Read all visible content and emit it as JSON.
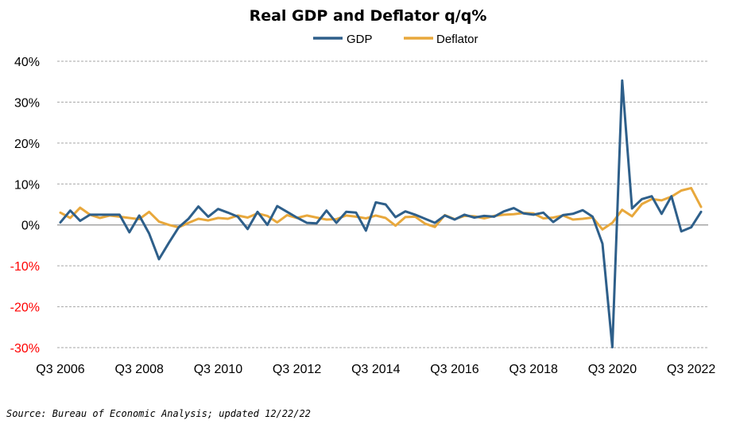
{
  "chart_data": {
    "type": "line",
    "title": "Real GDP and Deflator q/q%",
    "xlabel": "",
    "ylabel": "",
    "ylim": [
      -30,
      40
    ],
    "yticks": [
      40,
      30,
      20,
      10,
      0,
      -10,
      -20,
      -30
    ],
    "ytick_labels": [
      "40%",
      "30%",
      "20%",
      "10%",
      "0%",
      "-10%",
      "-20%",
      "-30%"
    ],
    "negative_tick_color": "#ff0000",
    "xtick_labels": [
      "Q3 2006",
      "Q3 2008",
      "Q3 2010",
      "Q3 2012",
      "Q3 2014",
      "Q3 2016",
      "Q3 2018",
      "Q3 2020",
      "Q3 2022"
    ],
    "grid": "horizontal-dashed",
    "legend": "top-center",
    "source": "Source: Bureau of Economic Analysis; updated 12/22/22",
    "series": [
      {
        "name": "GDP",
        "color": "#2e5f8a",
        "values": [
          0.6,
          3.5,
          1.0,
          2.5,
          2.5,
          2.5,
          2.5,
          -1.8,
          2.3,
          -2.1,
          -8.4,
          -4.4,
          -0.6,
          1.5,
          4.5,
          2.0,
          3.9,
          3.0,
          2.0,
          -1.0,
          3.2,
          0.0,
          4.6,
          3.2,
          1.8,
          0.5,
          0.4,
          3.5,
          0.5,
          3.2,
          3.0,
          -1.4,
          5.5,
          5.0,
          1.9,
          3.3,
          2.5,
          1.5,
          0.5,
          2.3,
          1.3,
          2.5,
          1.8,
          2.2,
          2.0,
          3.3,
          4.1,
          2.8,
          2.5,
          3.0,
          0.7,
          2.4,
          2.7,
          3.6,
          2.0,
          -4.6,
          -29.9,
          35.3,
          4.0,
          6.3,
          7.0,
          2.7,
          7.0,
          -1.6,
          -0.6,
          3.2
        ],
        "unit": "%"
      },
      {
        "name": "Deflator",
        "color": "#e8a83c",
        "values": [
          3.0,
          1.7,
          4.2,
          2.5,
          1.7,
          2.3,
          2.0,
          1.7,
          1.4,
          3.2,
          0.8,
          0.0,
          -0.6,
          0.5,
          1.5,
          1.1,
          1.7,
          1.5,
          2.3,
          1.8,
          2.8,
          2.2,
          0.6,
          2.4,
          1.7,
          2.3,
          1.8,
          1.3,
          1.4,
          2.3,
          2.0,
          1.6,
          2.3,
          1.7,
          -0.2,
          1.9,
          2.0,
          0.3,
          -0.5,
          2.4,
          1.4,
          2.2,
          2.1,
          1.6,
          2.2,
          2.5,
          2.6,
          2.9,
          2.8,
          1.6,
          1.8,
          2.3,
          1.3,
          1.5,
          1.8,
          -1.1,
          0.5,
          3.7,
          2.1,
          5.1,
          6.3,
          6.0,
          6.9,
          8.4,
          9.0,
          4.4
        ],
        "unit": "%"
      }
    ]
  }
}
